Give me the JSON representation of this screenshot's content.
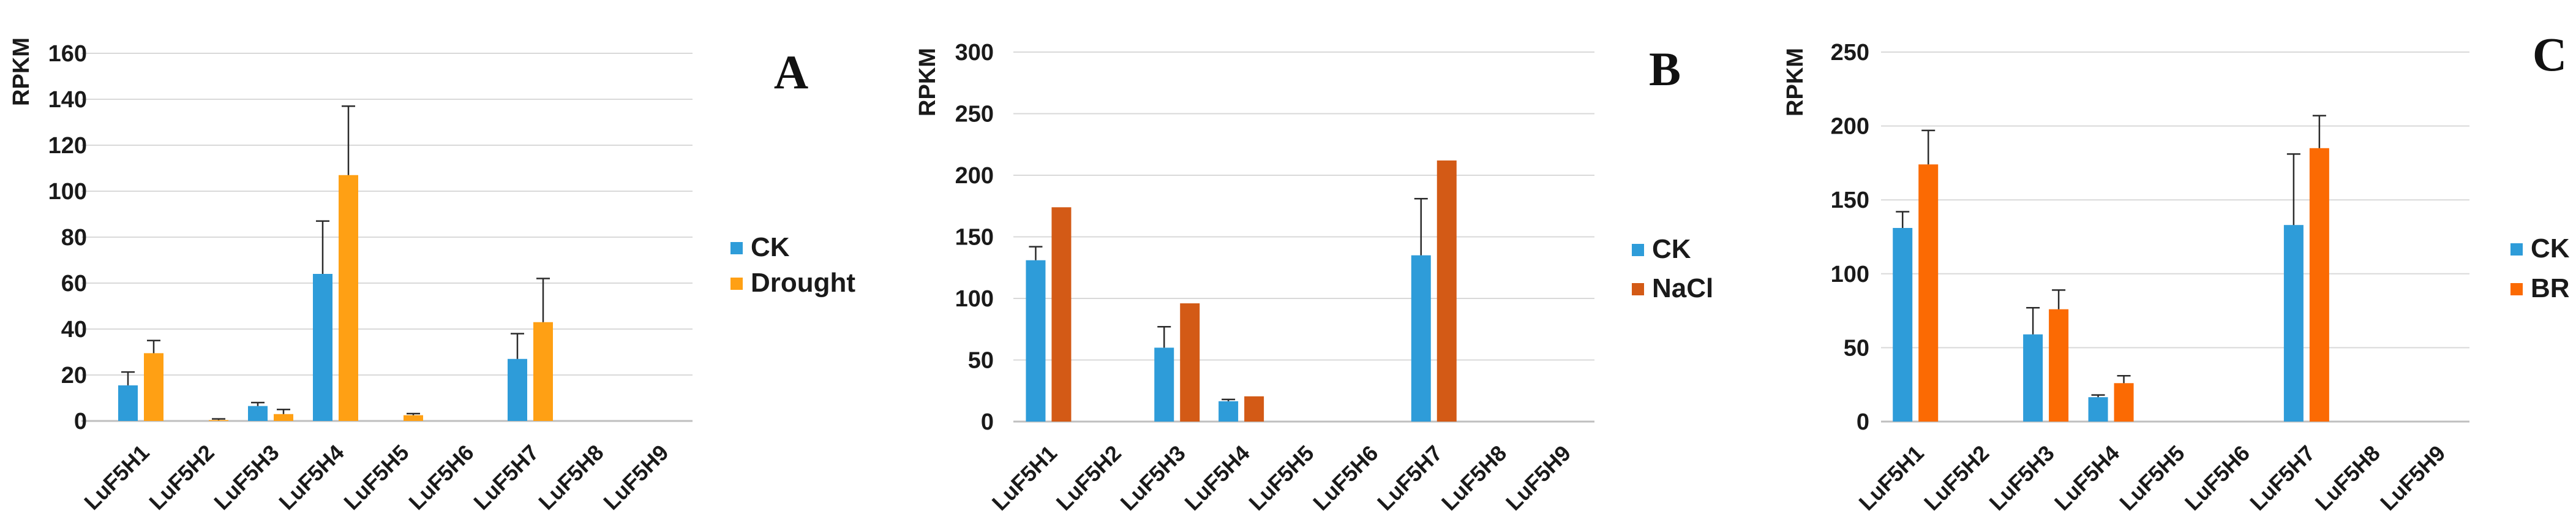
{
  "figure": {
    "background": "#ffffff",
    "grid_color": "#d9d9d9",
    "axis_line_color": "#bfbfbf",
    "error_bar_color": "#2b2b2b",
    "text_color": "#1a1a1a"
  },
  "chart_data": [
    {
      "type": "bar",
      "panel_label": "A",
      "ylabel": "RPKM",
      "xlabel": "",
      "ylim": [
        0,
        160
      ],
      "ytick_step": 20,
      "grid": true,
      "legend_position": "right",
      "categories": [
        "LuF5H1",
        "LuF5H2",
        "LuF5H3",
        "LuF5H4",
        "LuF5H5",
        "LuF5H6",
        "LuF5H7",
        "LuF5H8",
        "LuF5H9"
      ],
      "series": [
        {
          "name": "CK",
          "color": "#2e9cd9",
          "values": [
            15.5,
            0,
            6.5,
            64,
            0,
            0,
            27,
            0,
            0
          ],
          "error_tops": [
            21.3,
            null,
            8,
            87,
            null,
            null,
            38,
            null,
            null
          ]
        },
        {
          "name": "Drought",
          "color": "#ffa014",
          "values": [
            29.5,
            0.4,
            3,
            107,
            2.5,
            0,
            43,
            0,
            0
          ],
          "error_tops": [
            35,
            0.9,
            5,
            137,
            3.2,
            null,
            62,
            null,
            null
          ]
        }
      ]
    },
    {
      "type": "bar",
      "panel_label": "B",
      "ylabel": "RPKM",
      "xlabel": "",
      "ylim": [
        0,
        300
      ],
      "ytick_step": 50,
      "grid": true,
      "legend_position": "right",
      "categories": [
        "LuF5H1",
        "LuF5H2",
        "LuF5H3",
        "LuF5H4",
        "LuF5H5",
        "LuF5H6",
        "LuF5H7",
        "LuF5H8",
        "LuF5H9"
      ],
      "series": [
        {
          "name": "CK",
          "color": "#2e9cd9",
          "values": [
            131,
            0,
            60,
            16.5,
            0,
            0,
            135,
            0,
            0
          ],
          "error_tops": [
            142,
            null,
            77,
            18,
            null,
            null,
            181,
            null,
            null
          ]
        },
        {
          "name": "NaCl",
          "color": "#d35a16",
          "values": [
            174,
            0,
            96,
            20.5,
            0,
            0,
            212,
            0,
            0
          ],
          "error_tops": [
            null,
            null,
            null,
            null,
            null,
            null,
            null,
            null,
            null
          ]
        }
      ]
    },
    {
      "type": "bar",
      "panel_label": "C",
      "ylabel": "RPKM",
      "xlabel": "",
      "ylim": [
        0,
        250
      ],
      "ytick_step": 50,
      "grid": true,
      "legend_position": "right",
      "categories": [
        "LuF5H1",
        "LuF5H2",
        "LuF5H3",
        "LuF5H4",
        "LuF5H5",
        "LuF5H6",
        "LuF5H7",
        "LuF5H8",
        "LuF5H9"
      ],
      "series": [
        {
          "name": "CK",
          "color": "#2e9cd9",
          "values": [
            131,
            0,
            59,
            16.5,
            0,
            0,
            133,
            0,
            0
          ],
          "error_tops": [
            142,
            null,
            77,
            18,
            null,
            null,
            181,
            null,
            null
          ]
        },
        {
          "name": "BR",
          "color": "#fb6a03",
          "values": [
            174,
            0,
            76,
            26,
            0,
            0,
            185,
            0,
            0
          ],
          "error_tops": [
            197,
            null,
            89,
            31,
            null,
            null,
            207,
            null,
            null
          ]
        }
      ]
    }
  ]
}
